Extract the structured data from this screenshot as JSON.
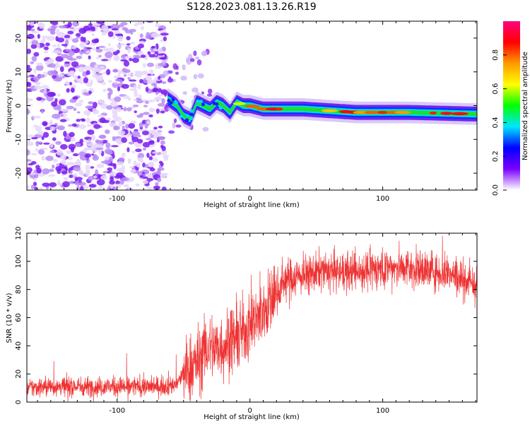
{
  "figure": {
    "title": "S128.2023.081.13.26.R19"
  },
  "chart_data": [
    {
      "type": "heatmap",
      "xlabel": "Height of straight line (km)",
      "ylabel": "Frequency (Hz)",
      "xlim": [
        -168,
        171
      ],
      "ylim": [
        -25,
        25
      ],
      "xticks": [
        -100,
        0,
        100
      ],
      "yticks": [
        -20,
        -10,
        0,
        10,
        20
      ],
      "colorbar": {
        "label": "Normalized spectral amplitude",
        "range": [
          0.0,
          1.0
        ],
        "ticks": [
          0.0,
          0.2,
          0.4,
          0.6,
          0.8
        ],
        "tick_labels": [
          "0.0",
          "0.2",
          "0.4",
          "0.6",
          "0.8"
        ],
        "colors": [
          "#ffffff",
          "#7a00ff",
          "#0000ff",
          "#00e5ff",
          "#00ff00",
          "#ffff00",
          "#ff9900",
          "#ff0000",
          "#ff0080"
        ]
      },
      "noise_region": {
        "x": [
          -168,
          -63
        ],
        "y": [
          -25,
          25
        ],
        "amplitude": 0.1
      },
      "signal_ridge": {
        "x": [
          -62,
          -55,
          -50,
          -45,
          -40,
          -35,
          -30,
          -25,
          -20,
          -15,
          -10,
          -5,
          0,
          10,
          20,
          40,
          60,
          80,
          100,
          120,
          140,
          160,
          171
        ],
        "frequency": [
          2,
          0,
          -3,
          -4,
          1,
          0,
          -1,
          1,
          0,
          -2,
          1,
          0,
          0,
          -1,
          -1,
          -1,
          -1.5,
          -2,
          -2,
          -2,
          -2.2,
          -2.4,
          -2.5
        ],
        "amplitude": [
          0.2,
          0.3,
          0.35,
          0.3,
          0.35,
          0.45,
          0.5,
          0.5,
          0.6,
          0.6,
          0.5,
          0.6,
          0.7,
          0.75,
          0.8,
          0.65,
          0.8,
          0.6,
          0.8,
          0.75,
          0.8,
          0.85,
          0.6
        ]
      },
      "grid": false
    },
    {
      "type": "line",
      "xlabel": "Height of straight line (km)",
      "ylabel": "SNR (10 * v/v)",
      "xlim": [
        -168,
        171
      ],
      "ylim": [
        0,
        120
      ],
      "xticks": [
        -100,
        0,
        100
      ],
      "yticks": [
        0,
        20,
        40,
        60,
        80,
        100,
        120
      ],
      "color": "#ee3333",
      "grid": false,
      "series": [
        {
          "x": [
            -168,
            -150,
            -130,
            -110,
            -90,
            -70,
            -60,
            -55,
            -50,
            -45,
            -40,
            -35,
            -30,
            -25,
            -20,
            -15,
            -10,
            -5,
            0,
            5,
            10,
            15,
            20,
            25,
            30,
            40,
            50,
            60,
            70,
            80,
            90,
            100,
            110,
            120,
            130,
            140,
            150,
            160,
            171
          ],
          "values": [
            10,
            11,
            11,
            11,
            11,
            11,
            12,
            13,
            20,
            25,
            28,
            35,
            40,
            38,
            40,
            45,
            45,
            50,
            55,
            60,
            65,
            70,
            78,
            85,
            88,
            90,
            92,
            93,
            92,
            93,
            94,
            95,
            96,
            95,
            94,
            93,
            92,
            88,
            82
          ]
        }
      ]
    }
  ]
}
